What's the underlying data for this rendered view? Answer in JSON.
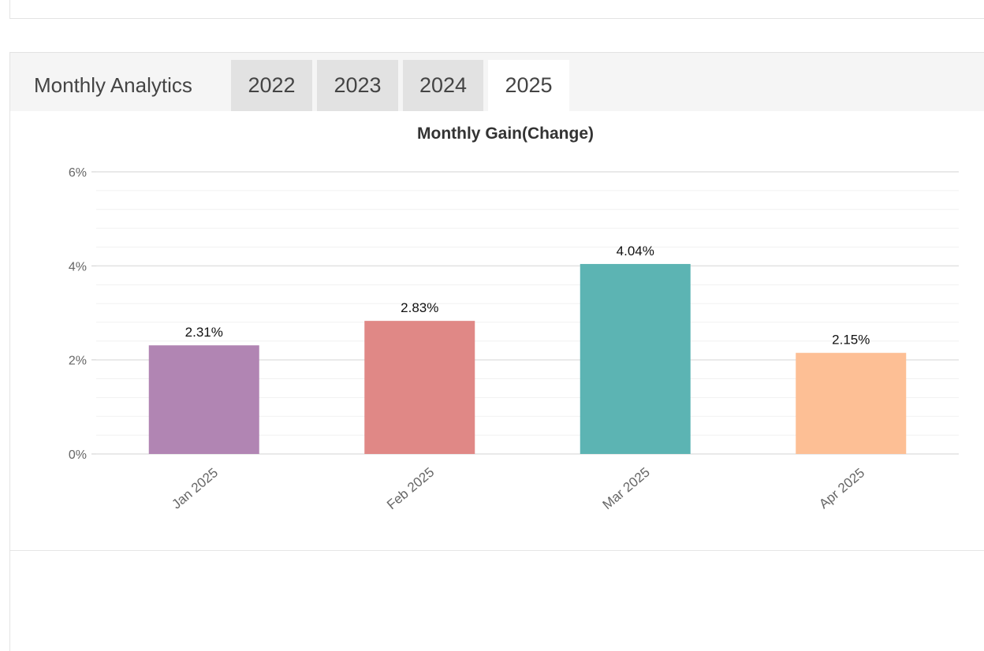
{
  "panel": {
    "title": "Monthly Analytics",
    "tabs": [
      {
        "label": "2022",
        "active": false
      },
      {
        "label": "2023",
        "active": false
      },
      {
        "label": "2024",
        "active": false
      },
      {
        "label": "2025",
        "active": true
      }
    ]
  },
  "chart_data": {
    "type": "bar",
    "title": "Monthly Gain(Change)",
    "categories": [
      "Jan 2025",
      "Feb 2025",
      "Mar 2025",
      "Apr 2025"
    ],
    "values": [
      2.31,
      2.83,
      4.04,
      2.15
    ],
    "value_labels": [
      "2.31%",
      "2.83%",
      "4.04%",
      "2.15%"
    ],
    "colors": [
      "#b185b3",
      "#e08886",
      "#5cb4b3",
      "#fdbf95"
    ],
    "ylim": [
      0,
      6
    ],
    "yticks": [
      0,
      2,
      4,
      6
    ],
    "ytick_labels": [
      "0%",
      "2%",
      "4%",
      "6%"
    ],
    "grid": true,
    "xlabel": "",
    "ylabel": ""
  }
}
